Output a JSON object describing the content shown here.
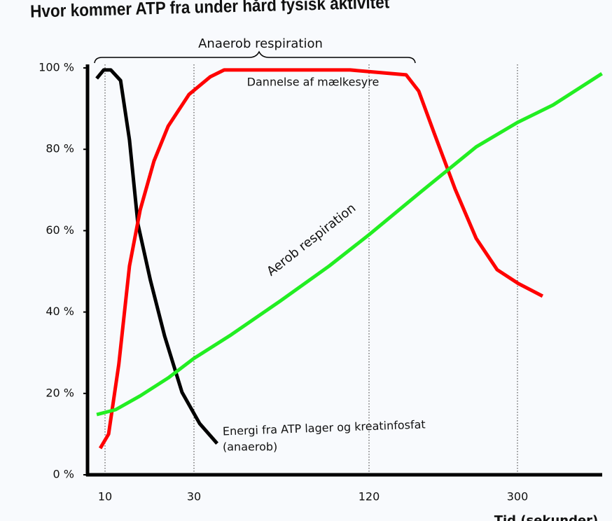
{
  "chart_data": {
    "type": "line",
    "title": "Hvor kommer ATP fra under hård fysisk aktivitet",
    "x_label": "Tid (sekunder)",
    "xlim": [
      6,
      403
    ],
    "xticks": [
      10,
      30,
      120,
      300
    ],
    "ylim": [
      0,
      100
    ],
    "yticks": [
      {
        "value": 0,
        "label": "0 %"
      },
      {
        "value": 20,
        "label": "20 %"
      },
      {
        "value": 40,
        "label": "40 %"
      },
      {
        "value": 60,
        "label": "60 %"
      },
      {
        "value": 80,
        "label": "80 %"
      },
      {
        "value": 100,
        "label": "100 %"
      }
    ],
    "grid": true,
    "series": [
      {
        "color": "#000000",
        "x": [
          8.1,
          9.7,
          11.3,
          13.5,
          15.5,
          17.4,
          20.2,
          23.4,
          27.3,
          32.9,
          41.9
        ],
        "values": [
          97.4,
          99.5,
          99.5,
          96.9,
          82.3,
          61.6,
          47.8,
          34.1,
          20.3,
          12.6,
          7.7
        ]
      },
      {
        "color": "#ff0000",
        "x": [
          8.9,
          10.8,
          13.1,
          15.5,
          17.9,
          21.0,
          24.2,
          28.9,
          38.3,
          45.5,
          74.3,
          110.3,
          165,
          180.3,
          199,
          224.4,
          249.9,
          275.4,
          301,
          330.6
        ],
        "values": [
          6.5,
          10,
          27.2,
          51.3,
          65.1,
          77.1,
          85.7,
          93.5,
          97.8,
          99.5,
          99.5,
          99.5,
          98.3,
          94.3,
          84,
          70.2,
          58.1,
          50.4,
          47,
          43.9
        ]
      },
      {
        "color": "#22ee22",
        "x": [
          8.1,
          12.4,
          17.9,
          24.2,
          30,
          49.1,
          74.3,
          99.5,
          120,
          182,
          250,
          300,
          343.3,
          402.7
        ],
        "values": [
          14.8,
          16,
          19.4,
          23.8,
          28.6,
          34.4,
          42.7,
          51.3,
          59,
          69.4,
          80.6,
          86.6,
          90.9,
          98.6
        ]
      }
    ],
    "annotations": [
      "Anaerob respiration",
      "Dannelse af mælkesyre",
      "Aerob respiration",
      "Energi fra ATP lager og kreatinfosfat",
      "(anaerob)"
    ]
  }
}
